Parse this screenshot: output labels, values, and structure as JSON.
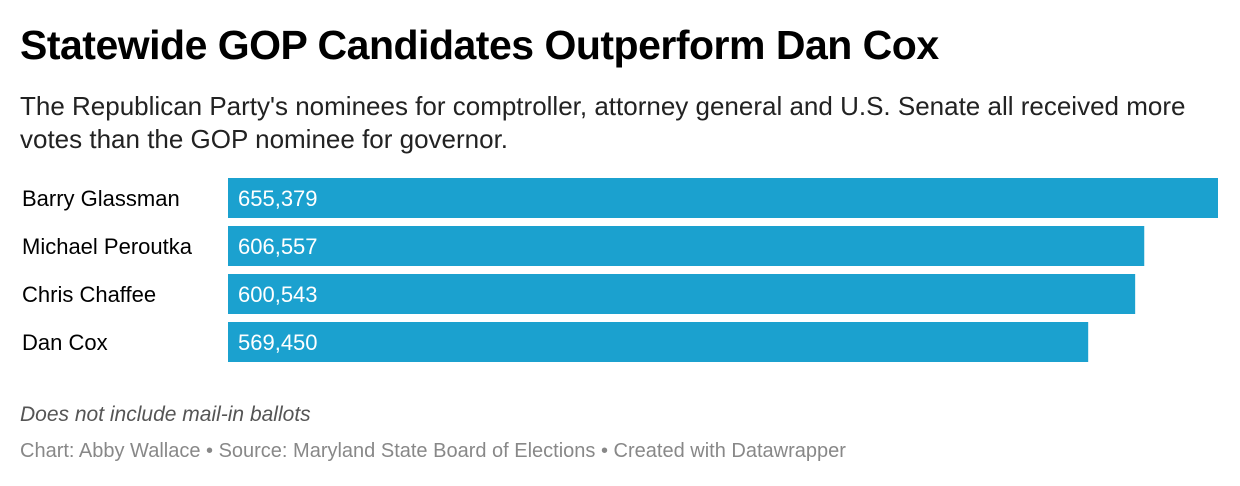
{
  "header": {
    "title": "Statewide GOP Candidates Outperform Dan Cox",
    "subtitle": "The Republican Party's nominees for comptroller, attorney general and U.S. Senate all received more votes than the GOP nominee for governor."
  },
  "colors": {
    "bar": "#1ba1cf",
    "label_text": "#000000",
    "value_text": "#ffffff"
  },
  "chart_data": {
    "type": "bar",
    "orientation": "horizontal",
    "categories": [
      "Barry Glassman",
      "Michael Peroutka",
      "Chris Chaffee",
      "Dan Cox"
    ],
    "values": [
      655379,
      606557,
      600543,
      569450
    ],
    "value_labels": [
      "655,379",
      "606,557",
      "600,543",
      "569,450"
    ],
    "title": "Statewide GOP Candidates Outperform Dan Cox",
    "xlabel": "",
    "ylabel": "",
    "xlim": [
      0,
      655379
    ],
    "grid": false,
    "legend": "none"
  },
  "footer": {
    "notes": "Does not include mail-in ballots",
    "credit": "Chart: Abby Wallace • Source: Maryland State Board of Elections • Created with Datawrapper"
  }
}
